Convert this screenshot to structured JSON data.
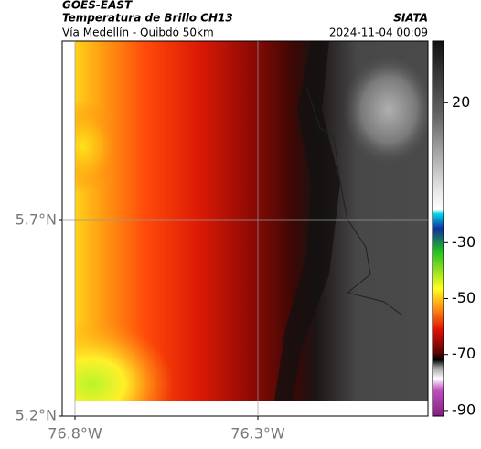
{
  "header": {
    "title": "GOES-EAST",
    "subtitle": "Temperatura de Brillo CH13",
    "source": "SIATA",
    "region": "Vía Medellín - Quibdó 50km",
    "timestamp": "2024-11-04 00:09"
  },
  "map": {
    "xlim": [
      -76.835,
      -75.835
    ],
    "ylim": [
      5.2,
      6.158
    ],
    "xticks": [
      {
        "value": -76.8,
        "label": "76.8°W"
      },
      {
        "value": -76.3,
        "label": "76.3°W"
      }
    ],
    "yticks": [
      {
        "value": 5.7,
        "label": "5.7°N"
      },
      {
        "value": 5.2,
        "label": "5.2°N"
      }
    ],
    "grid": true
  },
  "colorbar": {
    "lim": [
      -92,
      42
    ],
    "ticks": [
      20,
      -30,
      -50,
      -70,
      -90
    ]
  }
}
